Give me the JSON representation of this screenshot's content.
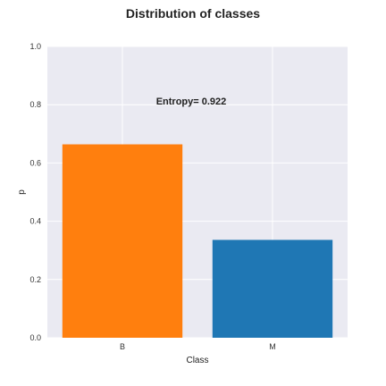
{
  "chart_data": {
    "type": "bar",
    "title": "Distribution of classes",
    "xlabel": "Class",
    "ylabel": "p",
    "categories": [
      "B",
      "M"
    ],
    "values": [
      0.664,
      0.336
    ],
    "colors": [
      "#ff7f0e",
      "#1f77b4"
    ],
    "ylim": [
      0,
      1.0
    ],
    "yticks": [
      "0.0",
      "0.2",
      "0.4",
      "0.6",
      "0.8",
      "1.0"
    ],
    "annotation": "Entropy= 0.922",
    "grid": true,
    "background": "#eaeaf2"
  }
}
